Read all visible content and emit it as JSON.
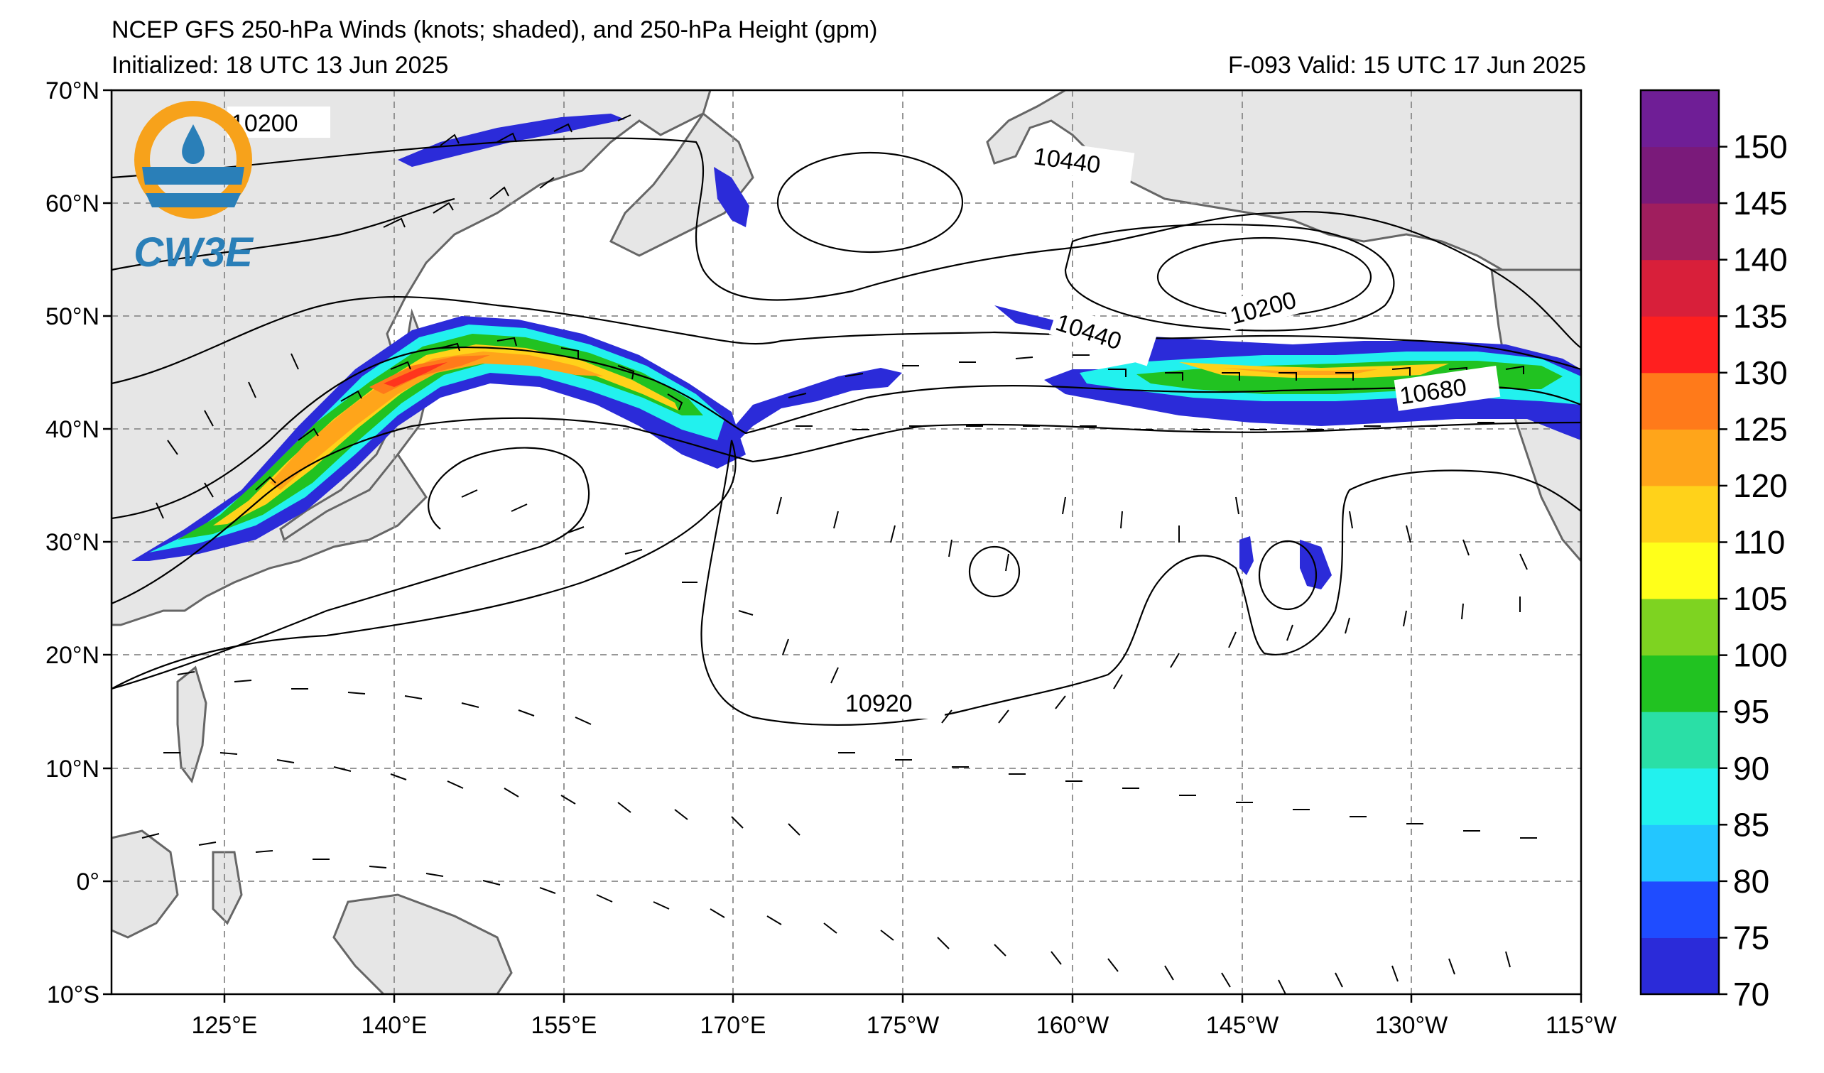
{
  "header": {
    "title": "NCEP GFS 250-hPa Winds (knots; shaded), and 250-hPa Height (gpm)",
    "initialized": "Initialized: 18 UTC 13 Jun 2025",
    "valid": "F-093  Valid: 15 UTC 17 Jun 2025"
  },
  "logo": {
    "text": "CW3E",
    "ring_color": "#f7a21b",
    "wave_color": "#2a7fb8",
    "icon": "water-drop-icon"
  },
  "map": {
    "lat_range": [
      -10,
      70
    ],
    "lon_range_deg_east": [
      115,
      245
    ],
    "lat_labels": [
      "70°N",
      "60°N",
      "50°N",
      "40°N",
      "30°N",
      "20°N",
      "10°N",
      "0°",
      "10°S"
    ],
    "lon_labels": [
      "125°E",
      "140°E",
      "155°E",
      "170°E",
      "175°W",
      "160°W",
      "145°W",
      "130°W",
      "115°W"
    ],
    "contour_labels": [
      "10200",
      "10440",
      "10200",
      "10440",
      "10680",
      "10920"
    ],
    "land_color": "#e6e6e6",
    "coast_color": "#666666"
  },
  "colorbar": {
    "levels": [
      "70",
      "75",
      "80",
      "85",
      "90",
      "95",
      "100",
      "105",
      "110",
      "120",
      "125",
      "130",
      "135",
      "140",
      "145",
      "150"
    ],
    "colors": [
      "#2b2bd9",
      "#1f4cff",
      "#23c6ff",
      "#22f1ee",
      "#2adfa6",
      "#21c221",
      "#7ed321",
      "#ffff1a",
      "#ffd21a",
      "#ffa51a",
      "#ff7a1a",
      "#ff1f1f",
      "#d81f3a",
      "#a01e5e",
      "#7a1a7a",
      "#6f1e96"
    ]
  }
}
